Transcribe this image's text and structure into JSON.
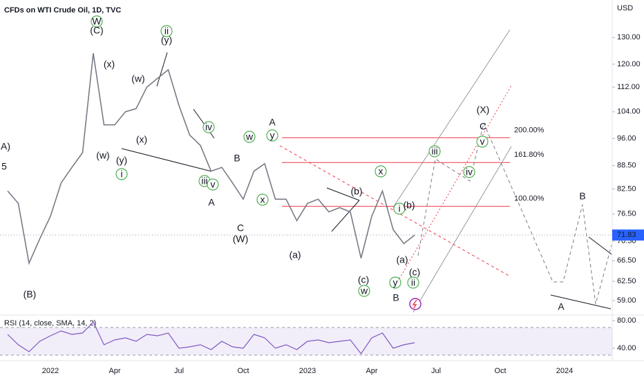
{
  "chart_data": [
    {
      "type": "line",
      "title": "CFDs on WTI Crude Oil, 1D, TVC",
      "currency": "USD",
      "log": true,
      "color": "#787b86",
      "categories": [
        null,
        null,
        null,
        null,
        "2022",
        null,
        null,
        null,
        null,
        null,
        "Apr",
        null,
        null,
        null,
        null,
        null,
        "Jul",
        null,
        null,
        null,
        null,
        null,
        "Oct",
        null,
        null,
        null,
        null,
        null,
        "2023",
        null,
        null,
        null,
        null,
        null,
        "Apr",
        null,
        null,
        null,
        null,
        null,
        "Jul",
        null,
        null,
        null,
        null,
        null,
        "Oct",
        null,
        null,
        null,
        null,
        null,
        "2024",
        null,
        null,
        null,
        null
      ],
      "values": [
        82,
        79,
        66,
        71,
        76,
        84,
        88,
        92,
        124,
        100,
        100,
        104,
        105,
        112,
        115,
        118,
        106,
        97,
        94,
        87,
        88,
        84,
        80,
        87,
        89,
        80,
        80,
        75,
        79,
        80,
        77,
        78,
        77,
        67,
        76,
        82,
        73,
        70,
        71.83,
        null,
        null,
        null,
        null,
        null,
        null,
        null,
        null,
        null,
        null,
        null,
        null,
        null,
        null,
        null,
        null,
        null,
        null
      ],
      "ylim": [
        56.6,
        145.5
      ],
      "yticks": [
        {
          "value": 130,
          "label": "130.00"
        },
        {
          "value": 120,
          "label": "120.00"
        },
        {
          "value": 112,
          "label": "112.00"
        },
        {
          "value": 104,
          "label": "104.00"
        },
        {
          "value": 96,
          "label": "96.00"
        },
        {
          "value": 88.5,
          "label": "88.50"
        },
        {
          "value": 82.5,
          "label": "82.50"
        },
        {
          "value": 76.5,
          "label": "76.50"
        },
        {
          "value": 70.5,
          "label": "70.50"
        },
        {
          "value": 66.5,
          "label": "66.50"
        },
        {
          "value": 62.5,
          "label": "62.50"
        },
        {
          "value": 59,
          "label": "59.00"
        }
      ],
      "last": 71.83,
      "last_color": "#2962ff",
      "fib_levels": [
        {
          "label": "200.00%",
          "price": 96.2
        },
        {
          "label": "161.80%",
          "price": 89.3
        },
        {
          "label": "100.00%",
          "price": 78.3
        }
      ],
      "annotations": [
        {
          "text": "W",
          "color": "#4caf50",
          "circle": true
        },
        {
          "text": "(C)",
          "color": "#2962ff"
        },
        {
          "text": "(x)",
          "color": "#2962ff"
        },
        {
          "text": "(w)",
          "color": "#2962ff"
        },
        {
          "text": "ii",
          "color": "#4caf50",
          "circle": true
        },
        {
          "text": "(y)",
          "color": "#2962ff"
        },
        {
          "text": "(w)",
          "color": "#2962ff"
        },
        {
          "text": "(x)",
          "color": "#2962ff"
        },
        {
          "text": "(y)",
          "color": "#2962ff"
        },
        {
          "text": "i",
          "color": "#4caf50",
          "circle": true
        },
        {
          "text": "iv",
          "color": "#4caf50",
          "circle": true
        },
        {
          "text": "iii",
          "color": "#4caf50",
          "circle": true
        },
        {
          "text": "v",
          "color": "#4caf50",
          "circle": true
        },
        {
          "text": "A",
          "color": "#f23645"
        },
        {
          "text": "B",
          "color": "#f23645"
        },
        {
          "text": "C",
          "color": "#f23645"
        },
        {
          "text": "(W)",
          "color": "#2962ff"
        },
        {
          "text": "w",
          "color": "#4caf50",
          "circle": true
        },
        {
          "text": "y",
          "color": "#4caf50",
          "circle": true
        },
        {
          "text": "A",
          "color": "#f23645"
        },
        {
          "text": "x",
          "color": "#4caf50",
          "circle": true
        },
        {
          "text": "(a)",
          "color": "#2962ff"
        },
        {
          "text": "(b)",
          "color": "#2962ff"
        },
        {
          "text": "x",
          "color": "#4caf50",
          "circle": true
        },
        {
          "text": "(c)",
          "color": "#2962ff"
        },
        {
          "text": "w",
          "color": "#4caf50",
          "circle": true
        },
        {
          "text": "i",
          "color": "#4caf50",
          "circle": true
        },
        {
          "text": "(b)",
          "color": "#2962ff"
        },
        {
          "text": "(a)",
          "color": "#2962ff"
        },
        {
          "text": "y",
          "color": "#4caf50",
          "circle": true
        },
        {
          "text": "B",
          "color": "#f23645"
        },
        {
          "text": "(c)",
          "color": "#2962ff"
        },
        {
          "text": "ii",
          "color": "#4caf50",
          "circle": true
        },
        {
          "text": "iii",
          "color": "#4caf50",
          "circle": true
        },
        {
          "text": "iv",
          "color": "#4caf50",
          "circle": true
        },
        {
          "text": "(X)",
          "color": "#2962ff"
        },
        {
          "text": "C",
          "color": "#f23645"
        },
        {
          "text": "v",
          "color": "#4caf50",
          "circle": true
        },
        {
          "text": "B",
          "color": "#f23645"
        },
        {
          "text": "A",
          "color": "#f23645"
        },
        {
          "text": "A)",
          "color": "#2962ff"
        },
        {
          "text": "5",
          "color": "#f23645"
        },
        {
          "text": "(B)",
          "color": "#2962ff"
        }
      ]
    },
    {
      "type": "line",
      "title": "RSI (14, close, SMA, 14, 2)",
      "color": "#7e57c2",
      "values": [
        60,
        45,
        35,
        50,
        58,
        65,
        60,
        62,
        78,
        45,
        52,
        55,
        50,
        60,
        58,
        62,
        40,
        42,
        45,
        38,
        50,
        42,
        40,
        60,
        55,
        40,
        45,
        38,
        50,
        52,
        48,
        50,
        52,
        32,
        55,
        62,
        40,
        45,
        48,
        null,
        null,
        null,
        null,
        null,
        null,
        null,
        null,
        null,
        null,
        null,
        null,
        null,
        null,
        null,
        null,
        null,
        null
      ],
      "ylim": [
        24,
        86
      ],
      "band": [
        30,
        70
      ],
      "yticks": [
        {
          "value": 80,
          "label": "80.00"
        },
        {
          "value": 40,
          "label": "40.00"
        }
      ]
    }
  ]
}
